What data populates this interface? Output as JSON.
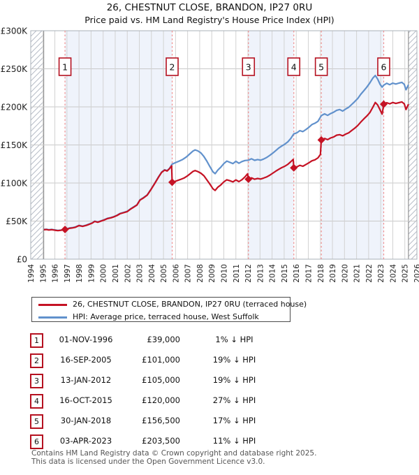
{
  "chart_data": {
    "type": "line",
    "title": "26, CHESTNUT CLOSE, BRANDON, IP27 0RU",
    "subtitle": "Price paid vs. HM Land Registry's House Price Index (HPI)",
    "units": "GBP thousands",
    "xlim": [
      1994,
      2026
    ],
    "ylim": [
      0,
      300
    ],
    "grid": true,
    "legend_position": "below",
    "x_ticks": [
      1994,
      1995,
      1996,
      1997,
      1998,
      1999,
      2000,
      2001,
      2002,
      2003,
      2004,
      2005,
      2006,
      2007,
      2008,
      2009,
      2010,
      2011,
      2012,
      2013,
      2014,
      2015,
      2016,
      2017,
      2018,
      2019,
      2020,
      2021,
      2022,
      2023,
      2024,
      2025,
      2026
    ],
    "y_ticks": [
      {
        "v": 0,
        "label": "£0"
      },
      {
        "v": 50,
        "label": "£50K"
      },
      {
        "v": 100,
        "label": "£100K"
      },
      {
        "v": 150,
        "label": "£150K"
      },
      {
        "v": 200,
        "label": "£200K"
      },
      {
        "v": 250,
        "label": "£250K"
      },
      {
        "v": 300,
        "label": "£300K"
      }
    ],
    "owned_fill": "#eff3fb",
    "owned_periods": [
      [
        1996.84,
        2005.72
      ],
      [
        2012.04,
        2015.8
      ],
      [
        2018.08,
        2023.25
      ]
    ],
    "no_data_regions": [
      [
        1994,
        1995.08
      ],
      [
        2025.3,
        2026
      ]
    ],
    "sale_line_color": "#ef8e8e",
    "series": [
      {
        "name": "26, CHESTNUT CLOSE, BRANDON, IP27 0RU (terraced house)",
        "color": "#c51224",
        "points": [
          [
            1995.08,
            38.6
          ],
          [
            1995.3,
            38.9
          ],
          [
            1995.5,
            38.3
          ],
          [
            1995.75,
            38.7
          ],
          [
            1996.0,
            38.0
          ],
          [
            1996.25,
            37.4
          ],
          [
            1996.5,
            37.9
          ],
          [
            1996.7,
            38.4
          ],
          [
            1996.84,
            39.0
          ],
          [
            1997.0,
            39.3
          ],
          [
            1997.2,
            40.5
          ],
          [
            1997.45,
            41.0
          ],
          [
            1997.7,
            41.8
          ],
          [
            1998.0,
            44.0
          ],
          [
            1998.3,
            43.0
          ],
          [
            1998.6,
            44.3
          ],
          [
            1998.85,
            45.8
          ],
          [
            1999.1,
            47.3
          ],
          [
            1999.3,
            49.5
          ],
          [
            1999.55,
            48.4
          ],
          [
            1999.8,
            49.8
          ],
          [
            2000.05,
            51.2
          ],
          [
            2000.35,
            53.2
          ],
          [
            2000.65,
            54.3
          ],
          [
            2000.9,
            55.6
          ],
          [
            2001.15,
            57.3
          ],
          [
            2001.4,
            59.6
          ],
          [
            2001.7,
            61.0
          ],
          [
            2002.0,
            62.5
          ],
          [
            2002.25,
            65.5
          ],
          [
            2002.5,
            68.0
          ],
          [
            2002.8,
            71.0
          ],
          [
            2003.05,
            77.5
          ],
          [
            2003.35,
            80.5
          ],
          [
            2003.65,
            84.0
          ],
          [
            2003.95,
            91.0
          ],
          [
            2004.3,
            100.0
          ],
          [
            2004.6,
            108.0
          ],
          [
            2004.85,
            114.0
          ],
          [
            2005.1,
            117.0
          ],
          [
            2005.3,
            115.8
          ],
          [
            2005.5,
            118.8
          ],
          [
            2005.68,
            122.5
          ],
          [
            2005.72,
            101.0
          ],
          [
            2005.95,
            102.0
          ],
          [
            2006.2,
            103.5
          ],
          [
            2006.45,
            105.0
          ],
          [
            2006.7,
            106.5
          ],
          [
            2006.95,
            109.0
          ],
          [
            2007.2,
            112.0
          ],
          [
            2007.45,
            115.2
          ],
          [
            2007.62,
            116.3
          ],
          [
            2007.85,
            115.0
          ],
          [
            2008.1,
            112.8
          ],
          [
            2008.35,
            109.5
          ],
          [
            2008.6,
            104.0
          ],
          [
            2008.85,
            98.5
          ],
          [
            2009.1,
            92.5
          ],
          [
            2009.28,
            90.3
          ],
          [
            2009.5,
            94.5
          ],
          [
            2009.75,
            97.5
          ],
          [
            2010.0,
            101.5
          ],
          [
            2010.25,
            104.2
          ],
          [
            2010.5,
            103.0
          ],
          [
            2010.75,
            101.5
          ],
          [
            2011.0,
            104.0
          ],
          [
            2011.25,
            101.8
          ],
          [
            2011.5,
            104.3
          ],
          [
            2011.75,
            108.0
          ],
          [
            2011.97,
            112.0
          ],
          [
            2012.04,
            105.0
          ],
          [
            2012.3,
            106.8
          ],
          [
            2012.55,
            105.0
          ],
          [
            2012.8,
            106.0
          ],
          [
            2013.05,
            105.2
          ],
          [
            2013.3,
            106.5
          ],
          [
            2013.55,
            108.0
          ],
          [
            2013.8,
            110.2
          ],
          [
            2014.05,
            112.8
          ],
          [
            2014.3,
            115.5
          ],
          [
            2014.55,
            118.0
          ],
          [
            2014.8,
            120.2
          ],
          [
            2015.05,
            122.0
          ],
          [
            2015.3,
            124.5
          ],
          [
            2015.55,
            128.0
          ],
          [
            2015.75,
            131.0
          ],
          [
            2015.8,
            120.0
          ],
          [
            2016.05,
            121.2
          ],
          [
            2016.3,
            123.2
          ],
          [
            2016.55,
            122.0
          ],
          [
            2016.8,
            124.2
          ],
          [
            2017.05,
            126.5
          ],
          [
            2017.3,
            129.2
          ],
          [
            2017.55,
            130.5
          ],
          [
            2017.8,
            133.0
          ],
          [
            2018.0,
            137.5
          ],
          [
            2018.08,
            156.5
          ],
          [
            2018.35,
            158.5
          ],
          [
            2018.6,
            157.0
          ],
          [
            2018.85,
            159.2
          ],
          [
            2019.1,
            160.5
          ],
          [
            2019.35,
            162.8
          ],
          [
            2019.6,
            163.5
          ],
          [
            2019.85,
            162.0
          ],
          [
            2020.1,
            164.2
          ],
          [
            2020.35,
            166.0
          ],
          [
            2020.6,
            169.0
          ],
          [
            2020.85,
            172.0
          ],
          [
            2021.1,
            175.5
          ],
          [
            2021.35,
            180.0
          ],
          [
            2021.6,
            184.2
          ],
          [
            2021.85,
            188.0
          ],
          [
            2022.1,
            192.5
          ],
          [
            2022.35,
            199.5
          ],
          [
            2022.55,
            205.8
          ],
          [
            2022.75,
            202.5
          ],
          [
            2022.95,
            196.0
          ],
          [
            2023.12,
            190.5
          ],
          [
            2023.25,
            203.5
          ],
          [
            2023.5,
            205.5
          ],
          [
            2023.75,
            204.0
          ],
          [
            2024.0,
            205.8
          ],
          [
            2024.25,
            204.5
          ],
          [
            2024.5,
            205.5
          ],
          [
            2024.75,
            206.5
          ],
          [
            2024.95,
            204.0
          ],
          [
            2025.1,
            196.5
          ],
          [
            2025.3,
            203.5
          ]
        ]
      },
      {
        "name": "HPI: Average price, terraced house, West Suffolk",
        "color": "#6191cc",
        "points": [
          [
            1995.08,
            39.0
          ],
          [
            1995.3,
            39.3
          ],
          [
            1995.5,
            38.7
          ],
          [
            1995.75,
            39.1
          ],
          [
            1996.0,
            38.4
          ],
          [
            1996.25,
            37.8
          ],
          [
            1996.5,
            38.3
          ],
          [
            1996.7,
            38.8
          ],
          [
            1996.84,
            39.4
          ],
          [
            1997.0,
            39.7
          ],
          [
            1997.2,
            40.9
          ],
          [
            1997.45,
            41.4
          ],
          [
            1997.7,
            42.2
          ],
          [
            1998.0,
            44.4
          ],
          [
            1998.3,
            43.4
          ],
          [
            1998.6,
            44.7
          ],
          [
            1998.85,
            46.2
          ],
          [
            1999.1,
            47.7
          ],
          [
            1999.3,
            49.9
          ],
          [
            1999.55,
            48.8
          ],
          [
            1999.8,
            50.2
          ],
          [
            2000.05,
            51.6
          ],
          [
            2000.35,
            53.6
          ],
          [
            2000.65,
            54.7
          ],
          [
            2000.9,
            56.0
          ],
          [
            2001.15,
            57.7
          ],
          [
            2001.4,
            60.0
          ],
          [
            2001.7,
            61.4
          ],
          [
            2002.0,
            62.9
          ],
          [
            2002.25,
            65.9
          ],
          [
            2002.5,
            68.4
          ],
          [
            2002.8,
            71.4
          ],
          [
            2003.05,
            77.9
          ],
          [
            2003.35,
            80.9
          ],
          [
            2003.65,
            84.4
          ],
          [
            2003.95,
            91.4
          ],
          [
            2004.3,
            100.4
          ],
          [
            2004.6,
            108.4
          ],
          [
            2004.85,
            114.4
          ],
          [
            2005.1,
            117.4
          ],
          [
            2005.3,
            116.2
          ],
          [
            2005.5,
            119.2
          ],
          [
            2005.72,
            124.8
          ],
          [
            2006.0,
            126.8
          ],
          [
            2006.3,
            128.8
          ],
          [
            2006.6,
            131.0
          ],
          [
            2006.9,
            134.2
          ],
          [
            2007.2,
            138.5
          ],
          [
            2007.45,
            142.0
          ],
          [
            2007.62,
            143.5
          ],
          [
            2007.85,
            142.2
          ],
          [
            2008.1,
            139.5
          ],
          [
            2008.35,
            134.8
          ],
          [
            2008.6,
            128.5
          ],
          [
            2008.85,
            121.5
          ],
          [
            2009.1,
            114.8
          ],
          [
            2009.28,
            112.3
          ],
          [
            2009.5,
            117.0
          ],
          [
            2009.75,
            120.8
          ],
          [
            2010.0,
            125.5
          ],
          [
            2010.25,
            128.8
          ],
          [
            2010.5,
            127.2
          ],
          [
            2010.75,
            125.5
          ],
          [
            2011.0,
            128.5
          ],
          [
            2011.25,
            126.0
          ],
          [
            2011.5,
            128.2
          ],
          [
            2011.75,
            129.5
          ],
          [
            2012.04,
            130.0
          ],
          [
            2012.3,
            131.8
          ],
          [
            2012.55,
            129.8
          ],
          [
            2012.8,
            130.8
          ],
          [
            2013.05,
            130.0
          ],
          [
            2013.3,
            131.5
          ],
          [
            2013.55,
            133.5
          ],
          [
            2013.8,
            136.2
          ],
          [
            2014.05,
            139.2
          ],
          [
            2014.3,
            142.5
          ],
          [
            2014.55,
            146.0
          ],
          [
            2014.8,
            148.5
          ],
          [
            2015.05,
            151.0
          ],
          [
            2015.3,
            154.0
          ],
          [
            2015.55,
            158.5
          ],
          [
            2015.8,
            164.5
          ],
          [
            2016.05,
            166.0
          ],
          [
            2016.3,
            168.8
          ],
          [
            2016.55,
            167.5
          ],
          [
            2016.8,
            170.2
          ],
          [
            2017.05,
            173.2
          ],
          [
            2017.3,
            176.8
          ],
          [
            2017.55,
            178.5
          ],
          [
            2017.8,
            181.0
          ],
          [
            2018.08,
            188.5
          ],
          [
            2018.35,
            190.8
          ],
          [
            2018.6,
            188.8
          ],
          [
            2018.85,
            191.2
          ],
          [
            2019.1,
            193.0
          ],
          [
            2019.35,
            195.5
          ],
          [
            2019.6,
            196.5
          ],
          [
            2019.85,
            194.5
          ],
          [
            2020.1,
            197.2
          ],
          [
            2020.35,
            199.5
          ],
          [
            2020.6,
            203.2
          ],
          [
            2020.85,
            207.0
          ],
          [
            2021.1,
            211.0
          ],
          [
            2021.35,
            216.5
          ],
          [
            2021.6,
            221.2
          ],
          [
            2021.85,
            226.0
          ],
          [
            2022.1,
            231.5
          ],
          [
            2022.35,
            237.8
          ],
          [
            2022.55,
            241.2
          ],
          [
            2022.75,
            236.5
          ],
          [
            2022.95,
            229.5
          ],
          [
            2023.12,
            226.0
          ],
          [
            2023.25,
            228.5
          ],
          [
            2023.5,
            231.0
          ],
          [
            2023.75,
            229.2
          ],
          [
            2024.0,
            231.2
          ],
          [
            2024.25,
            230.0
          ],
          [
            2024.5,
            231.2
          ],
          [
            2024.75,
            232.2
          ],
          [
            2024.95,
            229.5
          ],
          [
            2025.1,
            222.5
          ],
          [
            2025.3,
            229.0
          ]
        ]
      }
    ],
    "sales": [
      {
        "n": "1",
        "x": 1996.84,
        "price": 39.0
      },
      {
        "n": "2",
        "x": 2005.72,
        "price": 101.0
      },
      {
        "n": "3",
        "x": 2012.04,
        "price": 105.0
      },
      {
        "n": "4",
        "x": 2015.8,
        "price": 120.0
      },
      {
        "n": "5",
        "x": 2018.08,
        "price": 156.5
      },
      {
        "n": "6",
        "x": 2023.25,
        "price": 203.5
      }
    ]
  },
  "table": {
    "rows": [
      {
        "n": "1",
        "date": "01-NOV-1996",
        "price": "£39,000",
        "hpi": "1% ↓ HPI"
      },
      {
        "n": "2",
        "date": "16-SEP-2005",
        "price": "£101,000",
        "hpi": "19% ↓ HPI"
      },
      {
        "n": "3",
        "date": "13-JAN-2012",
        "price": "£105,000",
        "hpi": "19% ↓ HPI"
      },
      {
        "n": "4",
        "date": "16-OCT-2015",
        "price": "£120,000",
        "hpi": "27% ↓ HPI"
      },
      {
        "n": "5",
        "date": "30-JAN-2018",
        "price": "£156,500",
        "hpi": "17% ↓ HPI"
      },
      {
        "n": "6",
        "date": "03-APR-2023",
        "price": "£203,500",
        "hpi": "11% ↓ HPI"
      }
    ]
  },
  "footer": {
    "line1": "Contains HM Land Registry data © Crown copyright and database right 2025.",
    "line2": "This data is licensed under the Open Government Licence v3.0."
  }
}
